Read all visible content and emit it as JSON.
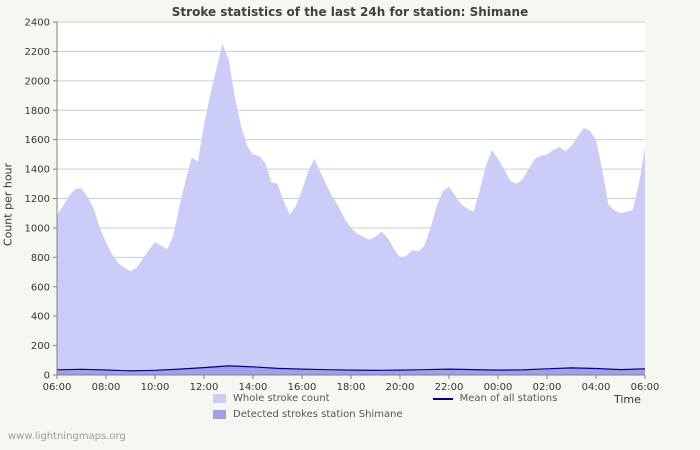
{
  "page": {
    "watermark": "www.lightningmaps.org"
  },
  "colors": {
    "page_background": "#f7f7f2",
    "plot_background": "#ffffff",
    "gridline": "#cccccc",
    "axis": "#808080",
    "title_text": "#404040",
    "tick_text": "#333333",
    "legend_text": "#555555",
    "watermark_text": "#999999"
  },
  "chart_data": {
    "type": "area",
    "title": "Stroke statistics of the last 24h for station: Shimane",
    "ylabel": "Count per hour",
    "xlabel": "Time",
    "ylim": [
      0,
      2400
    ],
    "y_step": 200,
    "grid": true,
    "legend_position": "bottom",
    "x_ticks": [
      "06:00",
      "08:00",
      "10:00",
      "12:00",
      "14:00",
      "16:00",
      "18:00",
      "20:00",
      "22:00",
      "00:00",
      "02:00",
      "04:00",
      "06:00"
    ],
    "x_units": "time of day, 15-min resolution for main series, hourly for others",
    "series": [
      {
        "name": "Whole stroke count",
        "type": "area",
        "color": "#ccccf8",
        "values": [
          1090,
          1150,
          1220,
          1265,
          1270,
          1210,
          1130,
          1000,
          900,
          820,
          760,
          730,
          705,
          730,
          790,
          850,
          905,
          880,
          855,
          950,
          1150,
          1320,
          1480,
          1450,
          1700,
          1900,
          2080,
          2250,
          2150,
          1900,
          1700,
          1560,
          1500,
          1490,
          1440,
          1310,
          1300,
          1180,
          1090,
          1150,
          1260,
          1380,
          1470,
          1380,
          1290,
          1210,
          1140,
          1060,
          1000,
          960,
          940,
          920,
          940,
          975,
          930,
          860,
          795,
          810,
          850,
          840,
          880,
          1000,
          1150,
          1250,
          1280,
          1220,
          1160,
          1130,
          1110,
          1250,
          1420,
          1530,
          1470,
          1400,
          1320,
          1300,
          1330,
          1400,
          1470,
          1490,
          1500,
          1530,
          1550,
          1520,
          1560,
          1620,
          1680,
          1660,
          1600,
          1400,
          1160,
          1120,
          1100,
          1110,
          1120,
          1300,
          1545
        ]
      },
      {
        "name": "Detected strokes station Shimane",
        "type": "area",
        "color": "#a0a0e8",
        "values": [
          25,
          30,
          28,
          22,
          30,
          40,
          55,
          60,
          50,
          40,
          35,
          30,
          28,
          25,
          28,
          30,
          35,
          32,
          28,
          30,
          38,
          45,
          40,
          32,
          38
        ]
      },
      {
        "name": "Mean of all stations",
        "type": "line",
        "color": "#000080",
        "values": [
          35,
          38,
          34,
          28,
          32,
          40,
          50,
          62,
          55,
          45,
          40,
          36,
          33,
          31,
          33,
          36,
          40,
          37,
          33,
          35,
          42,
          48,
          44,
          37,
          42
        ]
      }
    ]
  }
}
